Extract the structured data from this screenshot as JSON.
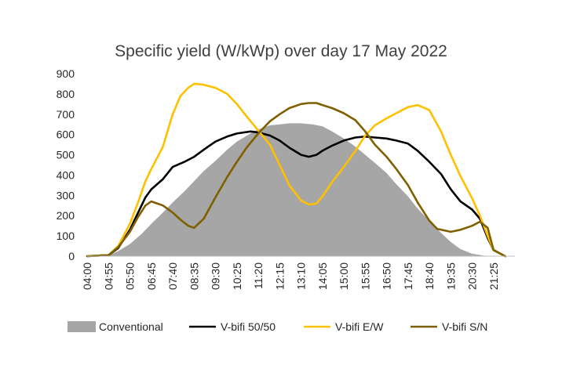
{
  "chart_data": {
    "type": "area",
    "title": "Specific yield (W/kWp) over day 17 May 2022",
    "xlabel": "",
    "ylabel": "",
    "ylim": [
      0,
      900
    ],
    "yticks": [
      "0",
      "100",
      "200",
      "300",
      "400",
      "500",
      "600",
      "700",
      "800",
      "900"
    ],
    "xticks": [
      "04:00",
      "04:55",
      "05:50",
      "06:45",
      "07:40",
      "08:35",
      "09:30",
      "10:25",
      "11:20",
      "12:15",
      "13:10",
      "14:05",
      "15:00",
      "15:55",
      "16:50",
      "17:45",
      "18:40",
      "19:35",
      "20:30",
      "21:25"
    ],
    "x_range_minutes": [
      240,
      1340
    ],
    "legend_position": "bottom",
    "series": [
      {
        "name": "Conventional",
        "style": "area",
        "color": "#a6a6a6",
        "x": [
          "04:00",
          "04:55",
          "05:20",
          "05:50",
          "06:20",
          "06:45",
          "07:15",
          "07:40",
          "08:10",
          "08:35",
          "09:00",
          "09:30",
          "10:00",
          "10:25",
          "11:00",
          "11:20",
          "11:50",
          "12:15",
          "12:40",
          "13:10",
          "13:40",
          "14:05",
          "14:30",
          "15:00",
          "15:30",
          "15:55",
          "16:20",
          "16:50",
          "17:15",
          "17:45",
          "18:10",
          "18:40",
          "19:10",
          "19:35",
          "20:00",
          "20:30",
          "21:00",
          "21:25",
          "21:55"
        ],
        "values": [
          0,
          5,
          25,
          60,
          110,
          160,
          215,
          265,
          320,
          370,
          420,
          470,
          525,
          565,
          605,
          625,
          645,
          650,
          655,
          655,
          650,
          640,
          615,
          580,
          540,
          500,
          460,
          410,
          355,
          295,
          235,
          175,
          115,
          70,
          35,
          12,
          3,
          0,
          0
        ]
      },
      {
        "name": "V-bifi 50/50",
        "style": "line",
        "color": "#000000",
        "x": [
          "04:00",
          "04:55",
          "05:20",
          "05:50",
          "06:10",
          "06:30",
          "06:45",
          "07:15",
          "07:40",
          "08:10",
          "08:35",
          "09:00",
          "09:30",
          "10:00",
          "10:25",
          "11:00",
          "11:20",
          "11:50",
          "12:15",
          "12:40",
          "13:10",
          "13:30",
          "13:50",
          "14:05",
          "14:30",
          "15:00",
          "15:30",
          "15:55",
          "16:20",
          "16:50",
          "17:15",
          "17:45",
          "18:10",
          "18:40",
          "19:10",
          "19:35",
          "20:00",
          "20:30",
          "20:50",
          "21:10",
          "21:25",
          "21:55"
        ],
        "values": [
          0,
          5,
          40,
          130,
          210,
          290,
          330,
          380,
          440,
          465,
          490,
          525,
          565,
          590,
          605,
          615,
          610,
          595,
          570,
          535,
          500,
          490,
          500,
          520,
          545,
          570,
          585,
          590,
          585,
          580,
          570,
          555,
          520,
          465,
          405,
          330,
          270,
          230,
          185,
          90,
          30,
          0
        ]
      },
      {
        "name": "V-bifi E/W",
        "style": "line",
        "color": "#ffc000",
        "x": [
          "04:00",
          "04:55",
          "05:20",
          "05:50",
          "06:10",
          "06:30",
          "06:45",
          "07:15",
          "07:40",
          "08:00",
          "08:20",
          "08:35",
          "09:00",
          "09:30",
          "10:00",
          "10:25",
          "10:50",
          "11:20",
          "11:50",
          "12:15",
          "12:40",
          "13:10",
          "13:30",
          "13:50",
          "14:05",
          "14:30",
          "15:00",
          "15:30",
          "15:55",
          "16:20",
          "16:50",
          "17:15",
          "17:45",
          "18:10",
          "18:40",
          "19:10",
          "19:35",
          "20:00",
          "20:30",
          "20:50",
          "21:10",
          "21:25",
          "21:55"
        ],
        "values": [
          0,
          5,
          50,
          160,
          260,
          370,
          430,
          540,
          700,
          790,
          830,
          850,
          845,
          830,
          800,
          750,
          690,
          620,
          550,
          450,
          350,
          275,
          255,
          260,
          295,
          365,
          440,
          520,
          595,
          645,
          680,
          705,
          735,
          745,
          720,
          615,
          500,
          395,
          285,
          200,
          100,
          30,
          0
        ]
      },
      {
        "name": "V-bifi S/N",
        "style": "line",
        "color": "#7f6000",
        "x": [
          "04:00",
          "04:55",
          "05:20",
          "05:50",
          "06:10",
          "06:30",
          "06:45",
          "07:15",
          "07:40",
          "08:00",
          "08:20",
          "08:35",
          "09:00",
          "09:30",
          "10:00",
          "10:25",
          "10:50",
          "11:20",
          "11:50",
          "12:15",
          "12:40",
          "13:10",
          "13:30",
          "13:50",
          "14:05",
          "14:30",
          "15:00",
          "15:30",
          "15:55",
          "16:20",
          "16:50",
          "17:15",
          "17:45",
          "18:10",
          "18:40",
          "19:00",
          "19:35",
          "20:00",
          "20:30",
          "20:50",
          "21:10",
          "21:25",
          "21:55"
        ],
        "values": [
          0,
          5,
          45,
          120,
          190,
          250,
          270,
          250,
          215,
          180,
          150,
          140,
          185,
          290,
          390,
          465,
          535,
          605,
          665,
          700,
          730,
          750,
          755,
          755,
          745,
          730,
          705,
          670,
          615,
          550,
          490,
          430,
          350,
          265,
          175,
          135,
          120,
          130,
          150,
          170,
          140,
          30,
          0
        ]
      }
    ]
  }
}
